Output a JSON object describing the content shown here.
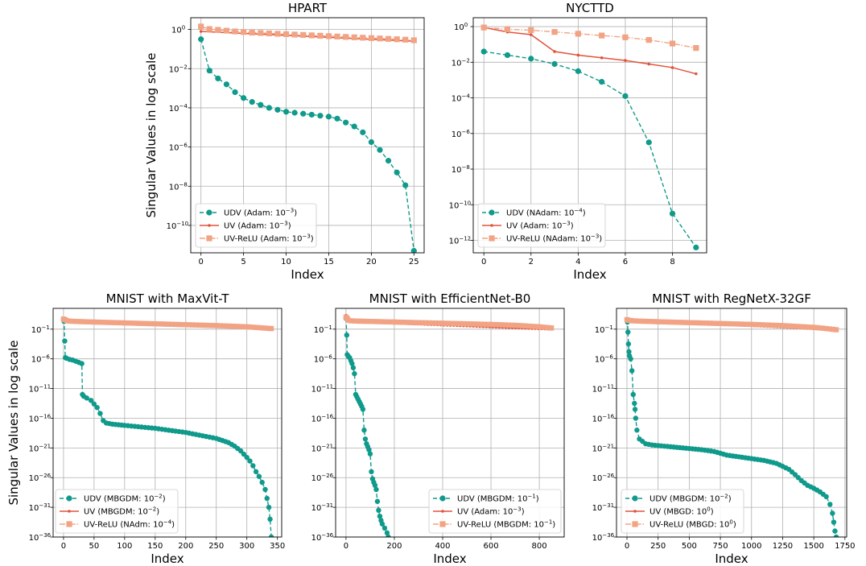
{
  "colors": {
    "udv": "#0f9a8b",
    "uv": "#e2533b",
    "uvrelu": "#f2a384"
  },
  "chart_data": [
    {
      "type": "line",
      "title": "HPART",
      "xlabel": "Index",
      "ylabel": "Singular Values in log scale",
      "yscale": "log",
      "xlim": [
        -1.2,
        26.2
      ],
      "ylim_exp": [
        -11.4,
        0.6
      ],
      "xticks": [
        0,
        5,
        10,
        15,
        20,
        25
      ],
      "ytick_exp": [
        0,
        -2,
        -4,
        -6,
        -8,
        -10
      ],
      "grid": true,
      "legend_loc": "lower-left",
      "series": [
        {
          "name": "UDV",
          "label": "UDV (Adam: 10⁻³)",
          "label_base": "UDV (Adam: 10",
          "label_exp": "−3",
          "label_end": ")",
          "style": "udv",
          "x": [
            0,
            1,
            2,
            3,
            4,
            5,
            6,
            7,
            8,
            9,
            10,
            11,
            12,
            13,
            14,
            15,
            16,
            17,
            18,
            19,
            20,
            21,
            22,
            23,
            24,
            25
          ],
          "y_exp": [
            -0.5,
            -2.1,
            -2.5,
            -2.8,
            -3.2,
            -3.5,
            -3.7,
            -3.85,
            -4.0,
            -4.1,
            -4.2,
            -4.25,
            -4.3,
            -4.35,
            -4.4,
            -4.45,
            -4.55,
            -4.75,
            -4.95,
            -5.25,
            -5.75,
            -6.15,
            -6.7,
            -7.3,
            -7.95,
            -11.3
          ]
        },
        {
          "name": "UV",
          "label": "UV (Adam: 10⁻³)",
          "label_base": "UV (Adam: 10",
          "label_exp": "−3",
          "label_end": ")",
          "style": "uv",
          "x": [
            0,
            25
          ],
          "y_exp": [
            -0.1,
            -0.6
          ]
        },
        {
          "name": "UV-ReLU",
          "label": "UV-ReLU (Adam: 10⁻³)",
          "label_base": "UV-ReLU (Adam: 10",
          "label_exp": "−3",
          "label_end": ")",
          "style": "uvrelu",
          "x": [
            0,
            1,
            2,
            3,
            4,
            5,
            6,
            7,
            8,
            9,
            10,
            11,
            12,
            13,
            14,
            15,
            16,
            17,
            18,
            19,
            20,
            21,
            22,
            23,
            24,
            25
          ],
          "y_exp": [
            0.15,
            0.02,
            -0.02,
            -0.06,
            -0.1,
            -0.13,
            -0.16,
            -0.18,
            -0.2,
            -0.22,
            -0.24,
            -0.26,
            -0.28,
            -0.3,
            -0.32,
            -0.34,
            -0.36,
            -0.38,
            -0.4,
            -0.42,
            -0.44,
            -0.46,
            -0.48,
            -0.5,
            -0.52,
            -0.55
          ]
        }
      ]
    },
    {
      "type": "line",
      "title": "NYCTTD",
      "xlabel": "Index",
      "ylabel": "",
      "yscale": "log",
      "xlim": [
        -0.45,
        9.45
      ],
      "ylim_exp": [
        -12.7,
        0.5
      ],
      "xticks": [
        0,
        2,
        4,
        6,
        8
      ],
      "ytick_exp": [
        0,
        -2,
        -4,
        -6,
        -8,
        -10,
        -12
      ],
      "grid": true,
      "legend_loc": "lower-left",
      "series": [
        {
          "name": "UDV",
          "label": "UDV (NAdam: 10⁻⁴)",
          "label_base": "UDV (NAdam: 10",
          "label_exp": "−4",
          "label_end": ")",
          "style": "udv",
          "x": [
            0,
            1,
            2,
            3,
            4,
            5,
            6,
            7,
            8,
            9
          ],
          "y_exp": [
            -1.4,
            -1.6,
            -1.8,
            -2.1,
            -2.5,
            -3.1,
            -3.9,
            -6.5,
            -10.5,
            -12.4
          ]
        },
        {
          "name": "UV",
          "label": "UV (Adam: 10⁻³)",
          "label_base": "UV (Adam: 10",
          "label_exp": "−3",
          "label_end": ")",
          "style": "uv",
          "x": [
            0,
            1,
            2,
            3,
            4,
            5,
            6,
            7,
            8,
            9
          ],
          "y_exp": [
            -0.05,
            -0.3,
            -0.45,
            -1.4,
            -1.6,
            -1.75,
            -1.9,
            -2.1,
            -2.3,
            -2.65
          ]
        },
        {
          "name": "UV-ReLU",
          "label": "UV-ReLU (NAdam: 10⁻³)",
          "label_base": "UV-ReLU (NAdam: 10",
          "label_exp": "−3",
          "label_end": ")",
          "style": "uvrelu",
          "x": [
            0,
            1,
            2,
            3,
            4,
            5,
            6,
            7,
            8,
            9
          ],
          "y_exp": [
            -0.05,
            -0.15,
            -0.2,
            -0.3,
            -0.4,
            -0.5,
            -0.6,
            -0.75,
            -0.95,
            -1.2
          ]
        }
      ]
    },
    {
      "type": "line",
      "title": "MNIST with MaxVit-T",
      "xlabel": "Index",
      "ylabel": "Singular Values in log scale",
      "yscale": "log",
      "xlim": [
        -17,
        357
      ],
      "ylim_exp": [
        -36,
        2.5
      ],
      "xticks": [
        0,
        50,
        100,
        150,
        200,
        250,
        300,
        350
      ],
      "ytick_exp": [
        -1,
        -6,
        -11,
        -16,
        -21,
        -26,
        -31,
        -36
      ],
      "grid": true,
      "legend_loc": "lower-left",
      "series": [
        {
          "name": "UDV",
          "label": "UDV (MBGDM: 10⁻²)",
          "label_base": "UDV (MBGDM: 10",
          "label_exp": "−2",
          "label_end": ")",
          "style": "udv",
          "x": [
            0,
            1,
            2,
            3,
            5,
            10,
            15,
            20,
            25,
            30,
            31,
            33,
            38,
            45,
            50,
            55,
            60,
            65,
            70,
            80,
            100,
            150,
            200,
            250,
            270,
            280,
            290,
            300,
            305,
            310,
            315,
            320,
            325,
            330,
            333,
            336,
            338,
            340
          ],
          "y_exp": [
            0.6,
            0.3,
            -3,
            -5.8,
            -5.9,
            -6.1,
            -6.2,
            -6.4,
            -6.6,
            -6.8,
            -12,
            -12.3,
            -12.6,
            -13,
            -13.6,
            -14.2,
            -15.2,
            -16.4,
            -16.8,
            -17.0,
            -17.2,
            -17.7,
            -18.4,
            -19.4,
            -20.1,
            -20.7,
            -21.5,
            -22.6,
            -23.2,
            -24.0,
            -25.0,
            -25.8,
            -26.8,
            -28.0,
            -29.5,
            -31.0,
            -33.0,
            -36.0
          ]
        },
        {
          "name": "UV",
          "label": "UV (MBGDM: 10⁻²)",
          "label_base": "UV (MBGDM: 10",
          "label_exp": "−2",
          "label_end": ")",
          "style": "uv",
          "x": [
            0,
            340
          ],
          "y_exp": [
            0.5,
            -0.9
          ]
        },
        {
          "name": "UV-ReLU",
          "label": "UV-ReLU (NAdm: 10⁻⁴)",
          "label_base": "UV-ReLU (NAdm: 10",
          "label_exp": "−4",
          "label_end": ")",
          "style": "uvrelu",
          "x": [
            0,
            2,
            5,
            10,
            20,
            50,
            100,
            150,
            200,
            250,
            300,
            320,
            340
          ],
          "y_exp": [
            0.7,
            0.6,
            0.45,
            0.35,
            0.3,
            0.2,
            0.05,
            -0.1,
            -0.25,
            -0.4,
            -0.6,
            -0.75,
            -0.9
          ]
        }
      ]
    },
    {
      "type": "line",
      "title": "MNIST with EfficientNet-B0",
      "xlabel": "Index",
      "ylabel": "",
      "yscale": "log",
      "xlim": [
        -43,
        903
      ],
      "ylim_exp": [
        -36,
        2.5
      ],
      "xticks": [
        0,
        200,
        400,
        600,
        800
      ],
      "ytick_exp": [
        -1,
        -6,
        -11,
        -16,
        -21,
        -26,
        -31,
        -36
      ],
      "grid": true,
      "legend_loc": "lower-right",
      "series": [
        {
          "name": "UDV",
          "label": "UDV (MBGDM: 10⁻¹)",
          "label_base": "UDV (MBGDM: 10",
          "label_exp": "−1",
          "label_end": ")",
          "style": "udv",
          "x": [
            0,
            3,
            5,
            10,
            15,
            20,
            25,
            30,
            35,
            40,
            45,
            50,
            55,
            60,
            65,
            70,
            75,
            80,
            85,
            90,
            95,
            100,
            105,
            110,
            115,
            120,
            125,
            130,
            135,
            140,
            145,
            150,
            160,
            170,
            175
          ],
          "y_exp": [
            0.8,
            -2,
            -5.3,
            -5.6,
            -5.8,
            -6.3,
            -6.8,
            -7.5,
            -8.5,
            -12,
            -12.4,
            -12.8,
            -13.2,
            -13.6,
            -14,
            -14.5,
            -18,
            -19.5,
            -20.3,
            -20.8,
            -21.3,
            -22,
            -25,
            -26.2,
            -26.8,
            -27.3,
            -28,
            -30,
            -31.5,
            -32.5,
            -33.2,
            -33.8,
            -34.5,
            -35.3,
            -36
          ]
        },
        {
          "name": "UV",
          "label": "UV (Adam: 10⁻³)",
          "label_base": "UV (Adam: 10",
          "label_exp": "−3",
          "label_end": ")",
          "style": "uv",
          "x": [
            0,
            5,
            15,
            850
          ],
          "y_exp": [
            1.3,
            1.2,
            0.3,
            -1.0
          ]
        },
        {
          "name": "UV-ReLU",
          "label": "UV-ReLU (MBGDM: 10⁻¹)",
          "label_base": "UV-ReLU (MBGDM: 10",
          "label_exp": "−1",
          "label_end": ")",
          "style": "uvrelu",
          "x": [
            0,
            5,
            10,
            20,
            50,
            100,
            200,
            300,
            400,
            500,
            600,
            700,
            800,
            850
          ],
          "y_exp": [
            1.0,
            0.8,
            0.5,
            0.4,
            0.35,
            0.3,
            0.2,
            0.1,
            0.0,
            -0.1,
            -0.2,
            -0.35,
            -0.6,
            -0.8
          ]
        }
      ]
    },
    {
      "type": "line",
      "title": "MNIST with RegNetX-32GF",
      "xlabel": "Index",
      "ylabel": "",
      "yscale": "log",
      "xlim": [
        -84,
        1764
      ],
      "ylim_exp": [
        -36,
        2.5
      ],
      "xticks": [
        0,
        250,
        500,
        750,
        1000,
        1250,
        1500,
        1750
      ],
      "ytick_exp": [
        -1,
        -6,
        -11,
        -16,
        -21,
        -26,
        -31,
        -36
      ],
      "grid": true,
      "legend_loc": "lower-left",
      "series": [
        {
          "name": "UDV",
          "label": "UDV (MBGDM: 10⁻²)",
          "label_base": "UDV (MBGDM: 10",
          "label_exp": "−2",
          "label_end": ")",
          "style": "udv",
          "x": [
            0,
            4,
            8,
            12,
            16,
            20,
            30,
            40,
            50,
            60,
            65,
            70,
            80,
            100,
            150,
            200,
            300,
            400,
            500,
            600,
            700,
            800,
            900,
            1000,
            1100,
            1200,
            1300,
            1350,
            1400,
            1450,
            1500,
            1550,
            1600,
            1630,
            1650,
            1660,
            1670,
            1680
          ],
          "y_exp": [
            0.6,
            0.2,
            -1.5,
            -3.5,
            -4.8,
            -5.5,
            -6.0,
            -8.0,
            -12.0,
            -13.5,
            -14.5,
            -16.0,
            -18.0,
            -19.5,
            -20.3,
            -20.5,
            -20.7,
            -20.9,
            -21.1,
            -21.3,
            -21.6,
            -22.2,
            -22.5,
            -22.8,
            -23.1,
            -23.6,
            -24.6,
            -25.5,
            -26.5,
            -27.3,
            -27.8,
            -28.4,
            -29.2,
            -30.5,
            -32.0,
            -33.5,
            -35.0,
            -36.0
          ]
        },
        {
          "name": "UV",
          "label": "UV (MBGD: 10⁰)",
          "label_base": "UV (MBGD: 10",
          "label_exp": "0",
          "label_end": ")",
          "style": "uv",
          "x": [
            0,
            1680
          ],
          "y_exp": [
            0.6,
            -1.1
          ]
        },
        {
          "name": "UV-ReLU",
          "label": "UV-ReLU (MBGD: 10⁰)",
          "label_base": "UV-ReLU (MBGD: 10",
          "label_exp": "0",
          "label_end": ")",
          "style": "uvrelu",
          "x": [
            0,
            10,
            50,
            100,
            250,
            500,
            750,
            1000,
            1250,
            1500,
            1600,
            1680
          ],
          "y_exp": [
            0.6,
            0.5,
            0.4,
            0.35,
            0.25,
            0.1,
            -0.05,
            -0.2,
            -0.4,
            -0.7,
            -0.9,
            -1.1
          ]
        }
      ]
    }
  ]
}
